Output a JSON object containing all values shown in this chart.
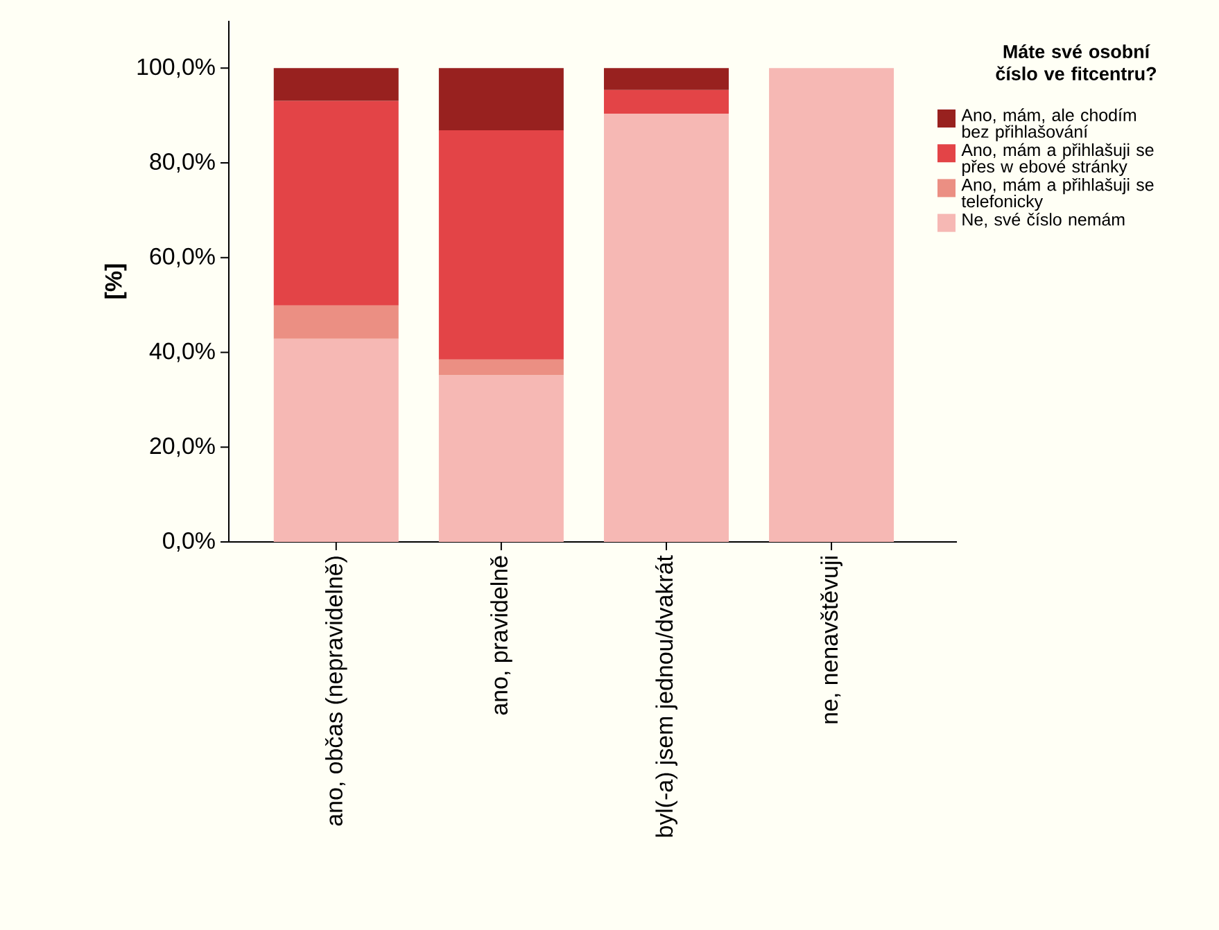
{
  "chart_data": {
    "type": "bar",
    "stacked": true,
    "categories": [
      "ano, občas (nepravidelně)",
      "ano, pravidelně",
      "byl(-a) jsem jednou/dvakrát",
      "ne, nenavštěvuji"
    ],
    "series": [
      {
        "name": "Ne, své číslo nemám",
        "color": "#f6b8b4",
        "values": [
          42.9,
          35.2,
          90.4,
          100.0
        ]
      },
      {
        "name": "Ano, mám a přihlašuji se telefonicky",
        "color": "#eb8f83",
        "values": [
          7.0,
          3.3,
          null,
          null
        ]
      },
      {
        "name": "Ano, mám a přihlašuji se přes w ebové stránky",
        "color": "#e34447",
        "values": [
          43.2,
          48.4,
          5.0,
          null
        ]
      },
      {
        "name": "Ano, mám, ale chodím bez přihlašování",
        "color": "#98211f",
        "values": [
          6.9,
          13.1,
          4.6,
          null
        ]
      }
    ],
    "ylabel": "[%]",
    "legend_title": "Máte své osobní číslo ve fitcentru?",
    "legend": "right",
    "ylim": [
      0,
      110
    ],
    "yticks": [
      {
        "value": 0,
        "label": "0,0%"
      },
      {
        "value": 20,
        "label": "20,0%"
      },
      {
        "value": 40,
        "label": "40,0%"
      },
      {
        "value": 60,
        "label": "60,0%"
      },
      {
        "value": 80,
        "label": "80,0%"
      },
      {
        "value": 100,
        "label": "100,0%"
      }
    ],
    "grid": false
  }
}
